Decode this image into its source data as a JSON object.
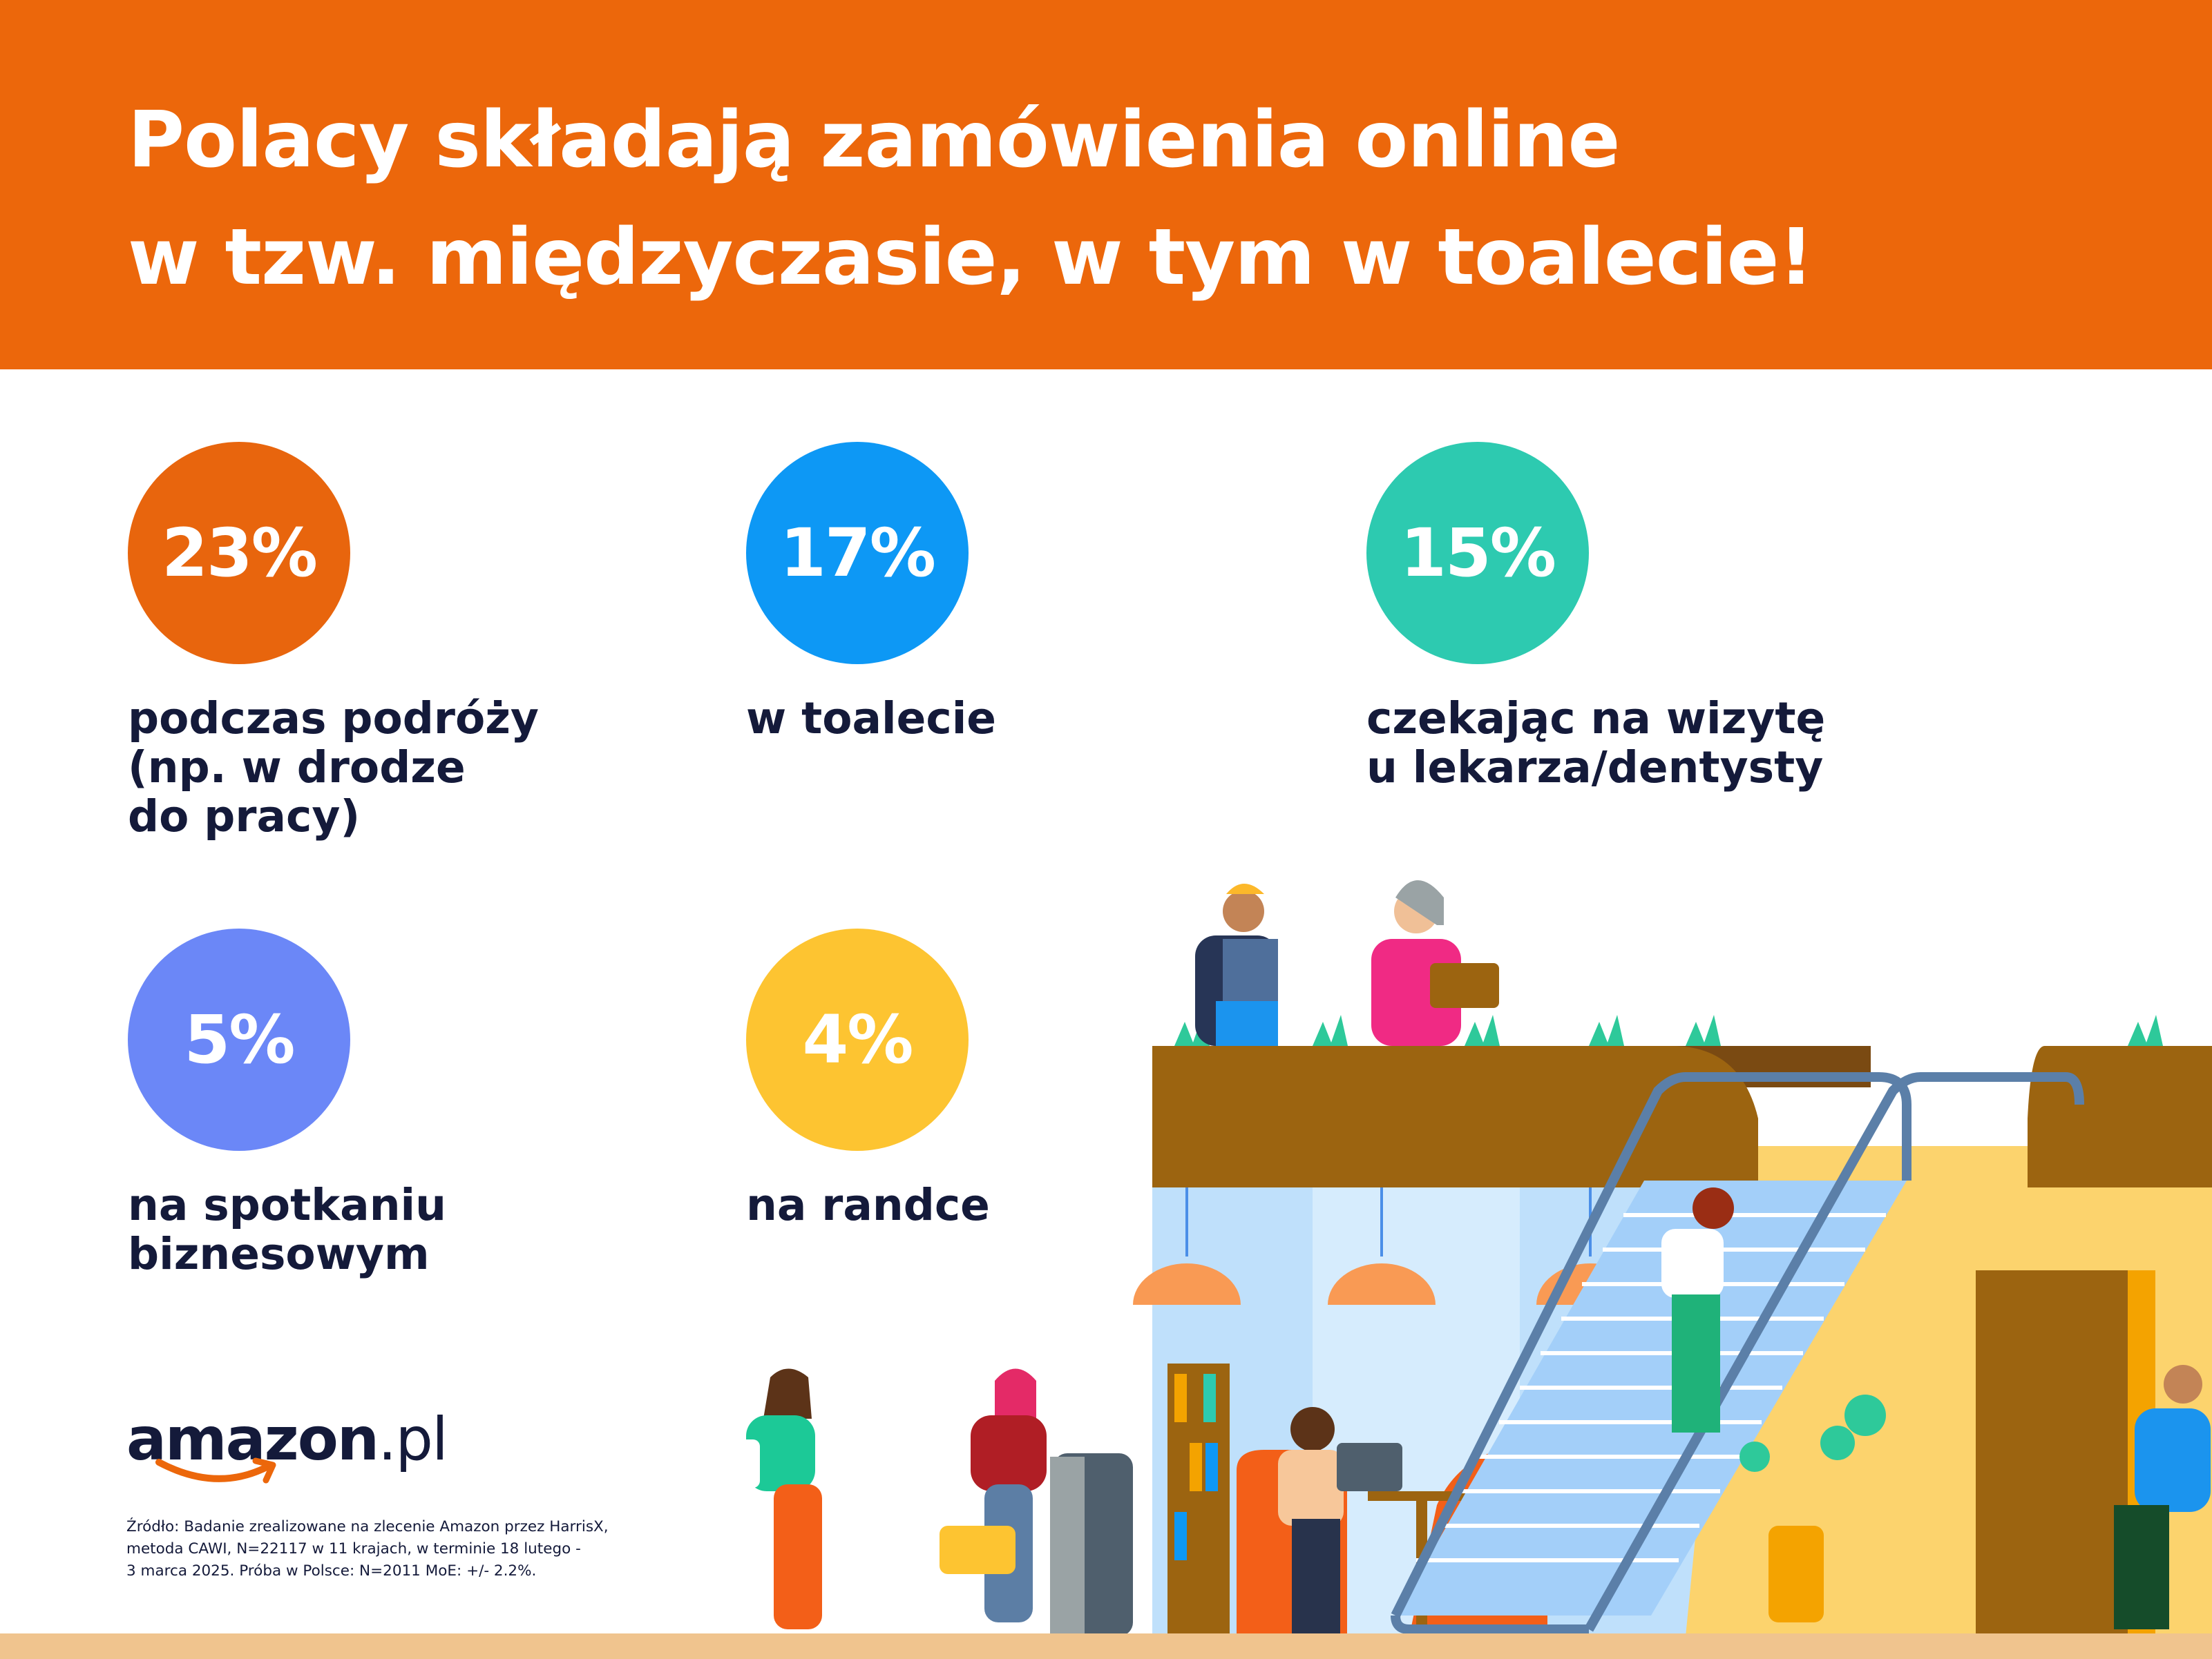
{
  "header": {
    "title_line1": "Polacy składają zamówienia online",
    "title_line2": "w tzw. międzyczasie, w tym w toalecie!",
    "background": "#ec670b"
  },
  "stats": [
    {
      "value": "23%",
      "label": "podczas podróży\n(np. w drodze\ndo pracy)",
      "color": "#e8650d"
    },
    {
      "value": "17%",
      "label": "w  toalecie",
      "color": "#0d98f5"
    },
    {
      "value": "15%",
      "label": "czekając na wizytę\nu lekarza/dentysty",
      "color": "#2dcab0"
    },
    {
      "value": "5%",
      "label": "na spotkaniu\nbiznesowym",
      "color": "#6b87f7"
    },
    {
      "value": "4%",
      "label": "na randce",
      "color": "#fdc431"
    }
  ],
  "logo": {
    "brand": "amazon",
    "suffix": ".pl",
    "smile_color": "#ec670b"
  },
  "source_note": "Źródło: Badanie zrealizowane na zlecenie Amazon przez HarrisX,\nmetoda CAWI, N=22117 w 11 krajach, w terminie 18 lutego -\n3 marca 2025. Próba w Polsce: N=2011 MoE: +/- 2.2%.",
  "illustration": {
    "description_icon": "shopping-mall-scene-icon"
  }
}
